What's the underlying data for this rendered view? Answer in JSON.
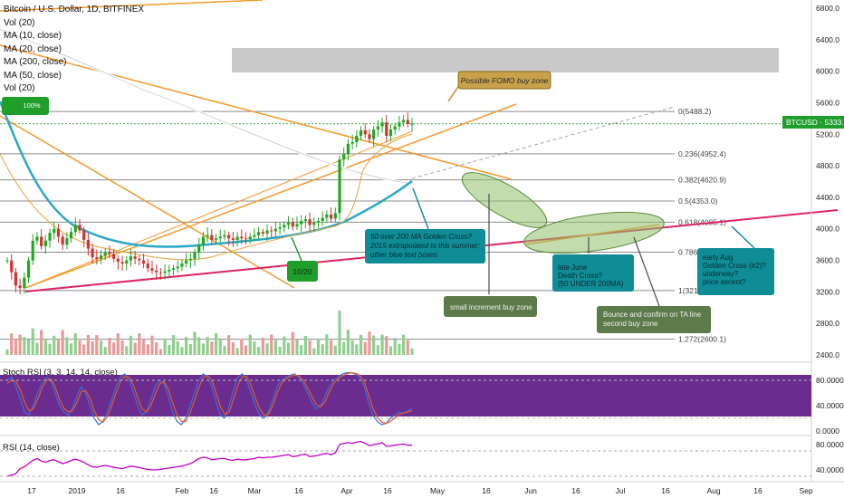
{
  "header": {
    "symbol_line": "Bitcoin / U.S. Dollar, 1D, BITFINEX",
    "indicators": [
      "Vol (20)",
      "MA (10, close)",
      "MA (20, close)",
      "MA (200, close)",
      "MA (50, close)",
      "Vol (20)"
    ]
  },
  "price_label": {
    "text": "BTCUSD · 5333.0",
    "value": 5333.0
  },
  "pct_badge": "100%",
  "colors": {
    "ma200": "#ffffff",
    "ma50": "#2aa8c8",
    "ma_short": "#e8a33a",
    "trendline": "#f29a2e",
    "support": "#e0245e",
    "candle_up": "#21a821",
    "candle_down": "#d3322f",
    "stoch_bg": "#6a2d8f",
    "stoch_k": "#3a6fd8",
    "stoch_d": "#e85a2a",
    "rsi": "#c400c4",
    "green_badge": "#1f9e2c",
    "teal_note": "#0f8c96"
  },
  "chart_data": [
    {
      "type": "candlestick",
      "title": "Bitcoin / U.S. Dollar, 1D, BITFINEX",
      "ylabel": "",
      "ylim": [
        2400,
        6800
      ],
      "yticks": [
        2400,
        2800,
        3200,
        3600,
        4000,
        4400,
        4800,
        5200,
        5600,
        6000,
        6400,
        6800
      ],
      "ytick_labels": [
        "2400.0",
        "2800.0",
        "3200.0",
        "3600.0",
        "4000.0",
        "4400.0",
        "4800.0",
        "5200.0",
        "5600.0",
        "6000.0",
        "6400.0",
        "6800.0"
      ],
      "xticks": [
        "17",
        "2019",
        "16",
        "Feb",
        "16",
        "Mar",
        "16",
        "Apr",
        "16",
        "May",
        "16",
        "Jun",
        "16",
        "Jul",
        "16",
        "Aug",
        "16",
        "Sep"
      ],
      "fib_levels": [
        {
          "label": "0(5488.2)",
          "value": 5488.2
        },
        {
          "label": "0.236(4952.4)",
          "value": 4952.4
        },
        {
          "label": "0.382(4620.9)",
          "value": 4620.9
        },
        {
          "label": "0.5(4353.0)",
          "value": 4353.0
        },
        {
          "label": "0.618(4085.1)",
          "value": 4085.1
        },
        {
          "label": "0.786(3703.6)",
          "value": 3703.6
        },
        {
          "label": "1(3217.0)",
          "value": 3217.0
        },
        {
          "label": "1.272(2600.1)",
          "value": 2600.1
        }
      ],
      "last_price": 5333.0,
      "close_series": [
        3600,
        3450,
        3280,
        3250,
        3380,
        3600,
        3850,
        3900,
        3780,
        3850,
        3950,
        4000,
        3900,
        3800,
        3880,
        3960,
        4050,
        3980,
        3860,
        3750,
        3640,
        3620,
        3660,
        3700,
        3680,
        3620,
        3580,
        3560,
        3600,
        3650,
        3620,
        3600,
        3560,
        3500,
        3470,
        3450,
        3440,
        3460,
        3480,
        3500,
        3520,
        3560,
        3600,
        3620,
        3700,
        3800,
        3900,
        3920,
        3860,
        3880,
        3900,
        3920,
        3880,
        3860,
        3900,
        3880,
        3870,
        3900,
        3920,
        3960,
        3940,
        3980,
        3970,
        4000,
        4020,
        4050,
        4080,
        4030,
        4060,
        4100,
        4120,
        4050,
        4080,
        4100,
        4140,
        4180,
        4130,
        4200,
        4880,
        4950,
        5080,
        5100,
        5180,
        5250,
        5200,
        5140,
        5260,
        5300,
        5350,
        5180,
        5260,
        5300,
        5350,
        5380,
        5330,
        5333
      ]
    },
    {
      "type": "line",
      "title": "Stoch RSI (3, 3, 14, 14, close)",
      "ylim": [
        0,
        100
      ],
      "yticks": [
        0,
        20,
        40,
        60,
        80
      ],
      "ytick_labels": [
        "0.0000",
        "",
        "40.0000",
        "",
        "80.0000"
      ],
      "series": [
        {
          "name": "K",
          "values": [
            80,
            85,
            70,
            50,
            30,
            25,
            40,
            60,
            75,
            85,
            80,
            60,
            40,
            30,
            25,
            35,
            55,
            70,
            60,
            40,
            20,
            10,
            15,
            30,
            50,
            70,
            85,
            90,
            80,
            60,
            40,
            25,
            30,
            50,
            70,
            80,
            75,
            55,
            30,
            15,
            10,
            20,
            40,
            60,
            80,
            90,
            85,
            70,
            45,
            25,
            20,
            40,
            65,
            85,
            90,
            80,
            60,
            40,
            25,
            20,
            30,
            50,
            70,
            80,
            85,
            88,
            90,
            85,
            75,
            60,
            45,
            35,
            40,
            55,
            70,
            80,
            85,
            90,
            92,
            92,
            90,
            85,
            70,
            45,
            25,
            15,
            10,
            12,
            20,
            25,
            30,
            28,
            32,
            35
          ]
        },
        {
          "name": "D",
          "values": [
            75,
            80,
            78,
            65,
            45,
            32,
            35,
            50,
            68,
            80,
            82,
            70,
            50,
            36,
            30,
            32,
            45,
            62,
            64,
            52,
            32,
            18,
            14,
            22,
            40,
            60,
            78,
            86,
            85,
            72,
            52,
            35,
            30,
            40,
            58,
            74,
            78,
            66,
            45,
            25,
            15,
            15,
            28,
            48,
            68,
            84,
            88,
            80,
            60,
            38,
            26,
            30,
            50,
            72,
            86,
            86,
            72,
            52,
            35,
            25,
            26,
            40,
            60,
            75,
            82,
            86,
            88,
            87,
            80,
            68,
            54,
            42,
            38,
            46,
            62,
            75,
            82,
            87,
            90,
            92,
            91,
            88,
            78,
            58,
            36,
            22,
            14,
            12,
            15,
            20,
            26,
            28,
            30,
            32
          ]
        }
      ]
    },
    {
      "type": "line",
      "title": "RSI (14, close)",
      "ylim": [
        30,
        90
      ],
      "yticks": [
        40,
        80
      ],
      "ytick_labels": [
        "40.0000",
        "80.0000"
      ],
      "series": [
        {
          "name": "RSI",
          "values": [
            30,
            32,
            34,
            42,
            45,
            50,
            55,
            58,
            54,
            52,
            55,
            56,
            53,
            50,
            52,
            55,
            57,
            55,
            52,
            48,
            45,
            44,
            46,
            47,
            46,
            44,
            43,
            42,
            44,
            46,
            45,
            44,
            42,
            41,
            40,
            40,
            41,
            42,
            43,
            44,
            45,
            46,
            48,
            50,
            54,
            58,
            60,
            59,
            56,
            57,
            58,
            58,
            56,
            55,
            57,
            56,
            56,
            57,
            58,
            60,
            59,
            60,
            60,
            61,
            62,
            63,
            64,
            61,
            62,
            64,
            65,
            61,
            62,
            63,
            65,
            66,
            64,
            67,
            80,
            82,
            83,
            82,
            84,
            85,
            82,
            78,
            80,
            81,
            83,
            77,
            78,
            79,
            80,
            81,
            79,
            79
          ]
        }
      ]
    }
  ],
  "annotations": {
    "fomo": "Possible FOMO buy zone",
    "golden_cross": [
      "50 over 200 MA Golden Cross?",
      "2015 extrapolated to this summer;",
      "other blue text boxes"
    ],
    "small_buy": "small increment buy zone",
    "death_cross": [
      "late June",
      "Death Cross?",
      "(50 UNDER 200MA)"
    ],
    "bounce": [
      "Bounce and confirm on TA line",
      "second buy zone"
    ],
    "early_aug": [
      "early Aug",
      "Golden Cross (#2)?",
      "underway?",
      "price ascent?"
    ],
    "date_badge": "10/20"
  }
}
